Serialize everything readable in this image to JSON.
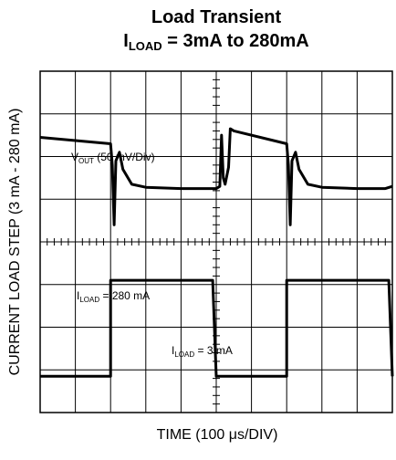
{
  "chart_data": {
    "type": "line",
    "title_line1": "Load Transient",
    "title_line2": {
      "symbol": "I",
      "subscript": "LOAD",
      "rest": " = 3mA to 280mA"
    },
    "xlabel": "TIME (100 μs/DIV)",
    "ylabel": "CURRENT LOAD STEP (3 mA - 280 mA)",
    "grid": {
      "x_divisions": 10,
      "y_divisions": 8,
      "minor_ticks_per_div": 5
    },
    "x_range_div": [
      0,
      10
    ],
    "annotations": {
      "vout": {
        "symbol": "V",
        "subscript": "OUT",
        "rest": " (50 mV/Div)"
      },
      "iload_high": {
        "symbol": "I",
        "subscript": "LOAD",
        "rest": " = 280 mA"
      },
      "iload_low": {
        "symbol": "I",
        "subscript": "LOAD",
        "rest": " = 3 mA"
      }
    },
    "series": [
      {
        "name": "V_OUT",
        "points": [
          [
            0,
            6.45
          ],
          [
            2.0,
            6.3
          ],
          [
            2.05,
            5.8
          ],
          [
            2.1,
            4.4
          ],
          [
            2.15,
            5.9
          ],
          [
            2.25,
            6.1
          ],
          [
            2.35,
            5.7
          ],
          [
            2.6,
            5.35
          ],
          [
            3.0,
            5.28
          ],
          [
            4.0,
            5.25
          ],
          [
            4.8,
            5.25
          ],
          [
            5.0,
            5.25
          ],
          [
            5.1,
            5.3
          ],
          [
            5.15,
            6.5
          ],
          [
            5.2,
            5.5
          ],
          [
            5.25,
            5.35
          ],
          [
            5.35,
            5.75
          ],
          [
            5.4,
            6.65
          ],
          [
            5.5,
            6.6
          ],
          [
            7.0,
            6.3
          ],
          [
            7.05,
            5.8
          ],
          [
            7.1,
            4.4
          ],
          [
            7.15,
            5.9
          ],
          [
            7.25,
            6.1
          ],
          [
            7.35,
            5.7
          ],
          [
            7.6,
            5.35
          ],
          [
            8.0,
            5.28
          ],
          [
            9.0,
            5.25
          ],
          [
            9.8,
            5.25
          ],
          [
            10.0,
            5.3
          ]
        ]
      },
      {
        "name": "I_LOAD",
        "points": [
          [
            0,
            0.85
          ],
          [
            2.0,
            0.85
          ],
          [
            2.0,
            3.1
          ],
          [
            4.9,
            3.1
          ],
          [
            5.0,
            0.85
          ],
          [
            7.0,
            0.85
          ],
          [
            7.0,
            3.1
          ],
          [
            9.9,
            3.1
          ],
          [
            10.0,
            0.85
          ]
        ]
      }
    ]
  }
}
